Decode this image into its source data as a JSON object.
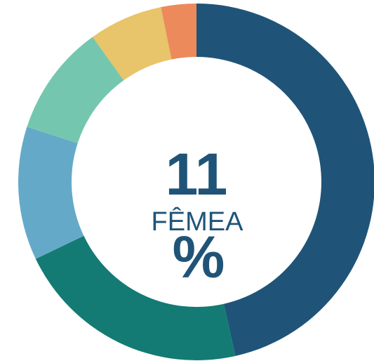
{
  "chart_data": {
    "type": "donut",
    "values": [
      46.5,
      21.4,
      12.1,
      10.1,
      6.7,
      3.2
    ],
    "colors": [
      "#1f5478",
      "#137b73",
      "#65a9c9",
      "#74c7ae",
      "#e8c46a",
      "#ec8a5c"
    ],
    "center_value": 11,
    "center_unit": "%",
    "center_label": "FÊMEA"
  }
}
